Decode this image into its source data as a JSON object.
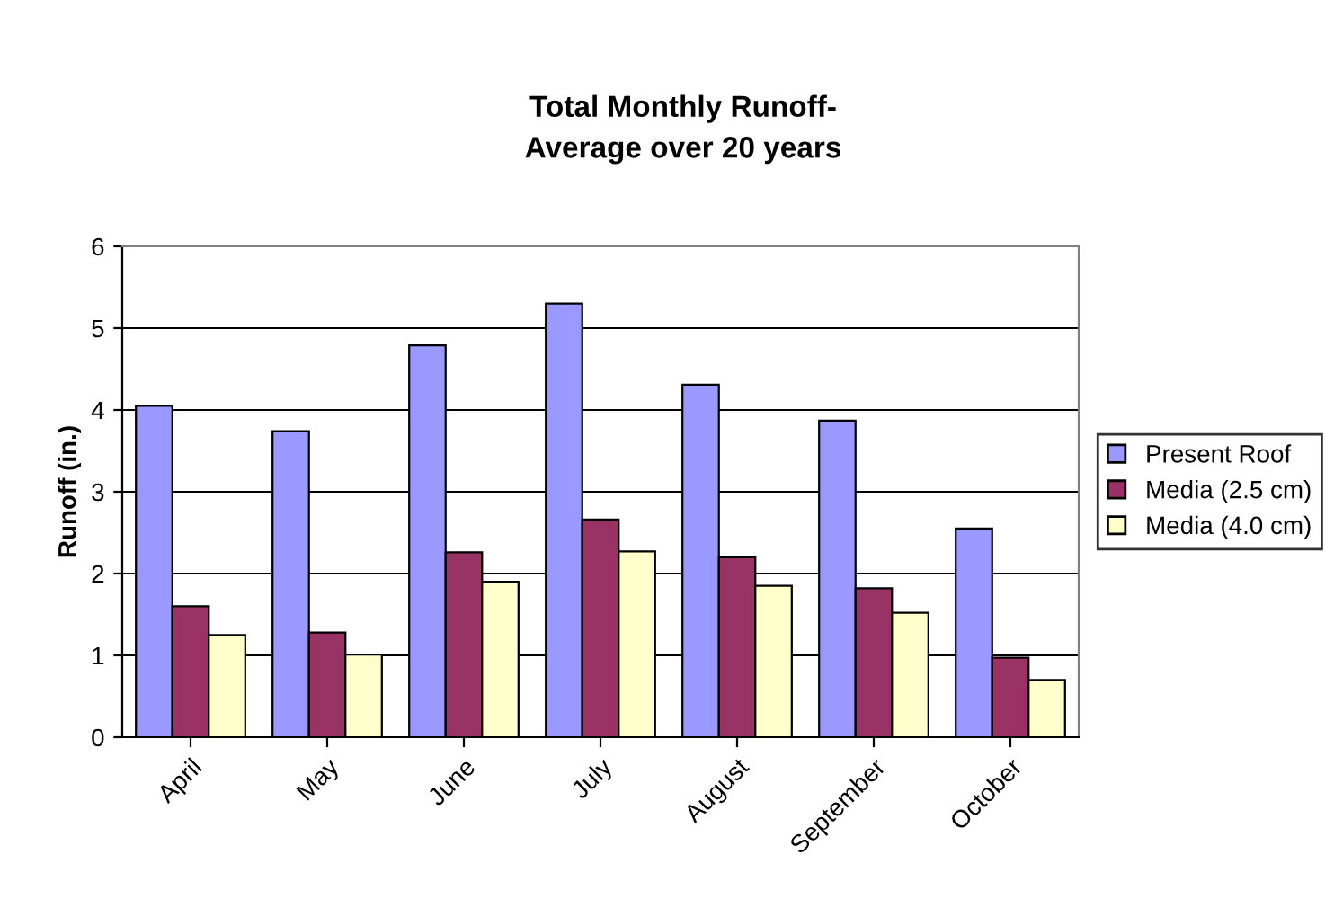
{
  "chart_data": {
    "type": "bar",
    "title": "Total Monthly Runoff-\nAverage over 20 years",
    "ylabel": "Runoff (in.)",
    "categories": [
      "April",
      "May",
      "June",
      "July",
      "August",
      "September",
      "October"
    ],
    "series": [
      {
        "name": "Present Roof",
        "color": "#9999ff",
        "values": [
          4.05,
          3.74,
          4.79,
          5.3,
          4.31,
          3.87,
          2.55
        ]
      },
      {
        "name": "Media (2.5 cm)",
        "color": "#993366",
        "values": [
          1.6,
          1.28,
          2.26,
          2.66,
          2.2,
          1.82,
          0.97
        ]
      },
      {
        "name": "Media (4.0 cm)",
        "color": "#ffffcc",
        "values": [
          1.25,
          1.01,
          1.9,
          2.27,
          1.85,
          1.52,
          0.7
        ]
      }
    ],
    "ylim": [
      0,
      6
    ],
    "yticks": [
      0,
      1,
      2,
      3,
      4,
      5,
      6
    ],
    "grid": "y",
    "legend": "right"
  }
}
